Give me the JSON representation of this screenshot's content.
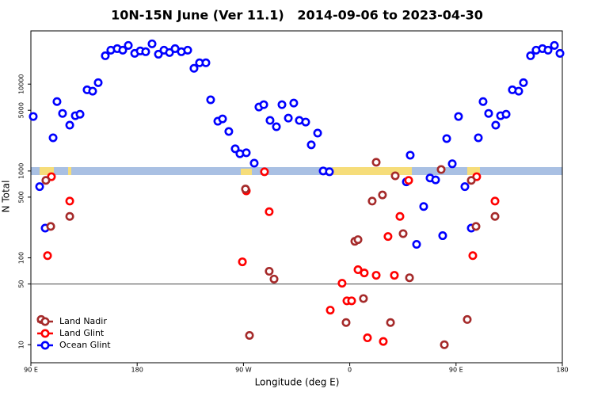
{
  "chart_data": {
    "type": "scatter",
    "title": "10N-15N June (Ver 11.1)   2014-09-06 to 2023-04-30",
    "x_label": "Longitude (deg E)",
    "y_label": "N Total",
    "xlim": [
      -270,
      180
    ],
    "xticks": [
      {
        "value": -270,
        "label": "90 E"
      },
      {
        "value": -180,
        "label": "180"
      },
      {
        "value": -90,
        "label": "90 W"
      },
      0,
      {
        "value": 90,
        "label": "90 E"
      },
      180
    ],
    "ylim": [
      6.2,
      41000
    ],
    "log_y": true,
    "yticks": [
      10,
      50,
      100,
      500,
      1000,
      5000,
      10000
    ],
    "hline": 50,
    "legend": "lower left",
    "series": [
      {
        "name": "Land Nadir",
        "color": "#a52a2a",
        "x": [
          -261.3,
          -257.3,
          -253.2,
          -237.1,
          -88.3,
          -84.9,
          -68.2,
          -64.1,
          -3.1,
          4.3,
          7,
          11.6,
          19,
          22.4,
          27.7,
          34.5,
          38.5,
          45.2,
          50.6,
          77.4,
          80.1,
          99.5,
          102.9,
          106.9,
          123
        ],
        "values": [
          19.5,
          780,
          230,
          300,
          620,
          12.8,
          70,
          57,
          18,
          155,
          162,
          34,
          450,
          1260,
          530,
          18,
          880,
          190,
          59,
          1040,
          10,
          19.5,
          780,
          230,
          300
        ]
      },
      {
        "name": "Land Glint",
        "color": "#ff0000",
        "x": [
          -255.9,
          -252.6,
          -237.1,
          -90.9,
          -87.6,
          -68.2,
          -72.2,
          -16.5,
          -6.5,
          -2.4,
          1.6,
          7,
          12.3,
          15,
          22.4,
          28.4,
          32.4,
          37.8,
          42.5,
          49.9,
          104.2,
          107.5,
          123
        ],
        "values": [
          106,
          860,
          450,
          90,
          590,
          340,
          980,
          25,
          51,
          32,
          32,
          73,
          67,
          12,
          63,
          10.9,
          176,
          63,
          300,
          780,
          106,
          860,
          450
        ]
      },
      {
        "name": "Ocean Glint",
        "color": "#0000ff",
        "x": [
          -268,
          -262.6,
          -257.9,
          -251.2,
          -247.9,
          -243.2,
          -237.1,
          -232.4,
          -228.4,
          -222.4,
          -217.7,
          -213,
          -207,
          -202.3,
          -196.9,
          -192.2,
          -187.5,
          -182.1,
          -177.4,
          -172.8,
          -167.4,
          -162,
          -157.3,
          -152.6,
          -147.9,
          -142.6,
          -137.2,
          -131.9,
          -127.2,
          -121.8,
          -117.8,
          -111.7,
          -107.7,
          -102.4,
          -97,
          -93,
          -87.6,
          -80.9,
          -76.9,
          -72.8,
          -67.5,
          -62.1,
          -57.4,
          -52,
          -47.4,
          -42.7,
          -37.3,
          -32.6,
          -27.2,
          -22.5,
          -17.2,
          47.9,
          51.2,
          56.6,
          62.6,
          68,
          72.7,
          78.7,
          82.1,
          86.8,
          92.1,
          97.5,
          102.9,
          108.9,
          112.9,
          117.6,
          123.6,
          127.7,
          132.4,
          137.7,
          143.1,
          147.1,
          153.1,
          157.8,
          163.2,
          167.9,
          173.3,
          178
        ],
        "values": [
          4240,
          660,
          220,
          2410,
          6300,
          4600,
          3370,
          4330,
          4500,
          8600,
          8300,
          10400,
          21200,
          24600,
          25600,
          24600,
          27900,
          22600,
          24100,
          23600,
          29100,
          22100,
          24600,
          23100,
          25600,
          23600,
          24600,
          15200,
          17600,
          17600,
          6600,
          3740,
          3980,
          2850,
          1800,
          1580,
          1620,
          1230,
          5450,
          5800,
          3820,
          3230,
          5800,
          4060,
          6050,
          3820,
          3660,
          2000,
          2730,
          1000,
          980,
          750,
          1520,
          143,
          390,
          830,
          790,
          180,
          2360,
          1210,
          4240,
          660,
          220,
          2410,
          6300,
          4600,
          3370,
          4330,
          4500,
          8600,
          8300,
          10400,
          21200,
          24600,
          25600,
          24600,
          27900,
          22600
        ]
      }
    ]
  }
}
